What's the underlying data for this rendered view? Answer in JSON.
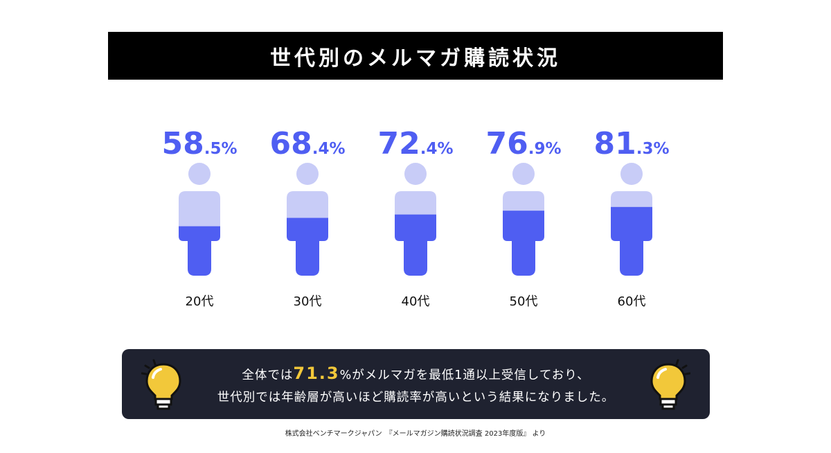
{
  "title": "世代別のメルマガ購読状況",
  "colors": {
    "fill": "#4f5ef2",
    "empty": "#c8ccf7",
    "head": "#c8ccf7",
    "pct_text": "#4f5ef2",
    "highlight": "#f2c83a",
    "box_bg": "#1f2230"
  },
  "chart_data": {
    "type": "bar",
    "categories": [
      "20代",
      "30代",
      "40代",
      "50代",
      "60代"
    ],
    "values": [
      58.5,
      68.4,
      72.4,
      76.9,
      81.3
    ],
    "value_labels": [
      {
        "main": "58",
        "decimal": ".5%"
      },
      {
        "main": "68",
        "decimal": ".4%"
      },
      {
        "main": "72",
        "decimal": ".4%"
      },
      {
        "main": "76",
        "decimal": ".9%"
      },
      {
        "main": "81",
        "decimal": ".3%"
      }
    ],
    "unit": "%",
    "ylim": [
      0,
      100
    ],
    "title": "世代別のメルマガ購読状況",
    "xlabel": "",
    "ylabel": ""
  },
  "summary": {
    "line1_before": "全体では",
    "highlight": "71.3",
    "line1_after": "%がメルマガを最低1通以上受信しており、",
    "line2": "世代別では年齢層が高いほど購読率が高いという結果になりました。"
  },
  "icons": [
    "lightbulb-icon",
    "lightbulb-icon"
  ],
  "source": "株式会社ベンチマークジャパン　『メールマガジン購読状況調査 2023年度版』 より"
}
